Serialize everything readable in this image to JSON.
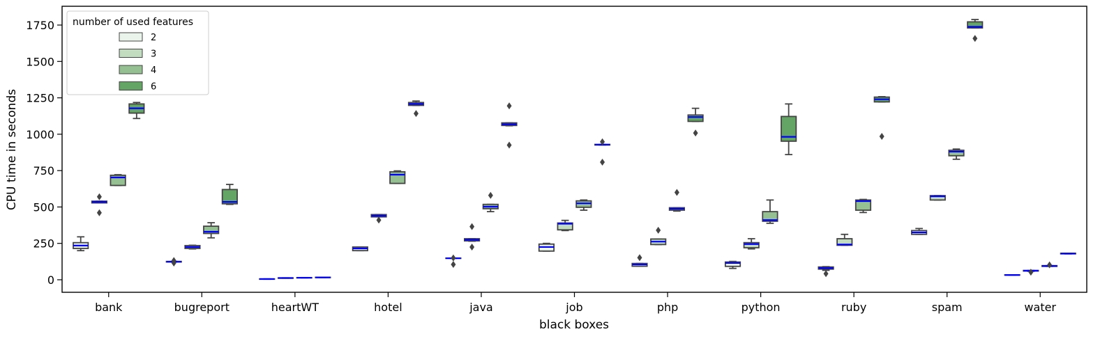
{
  "chart_data": {
    "type": "box",
    "title": "",
    "xlabel": "black boxes",
    "ylabel": "CPU time in seconds",
    "ylim": [
      -80,
      1880
    ],
    "yticks": [
      0,
      250,
      500,
      750,
      1000,
      1250,
      1500,
      1750
    ],
    "categories": [
      "bank",
      "bugreport",
      "heartWT",
      "hotel",
      "java",
      "job",
      "php",
      "python",
      "ruby",
      "spam",
      "water"
    ],
    "legend": {
      "title": "number of used features",
      "placement": "top-left",
      "entries": [
        "2",
        "3",
        "4",
        "6"
      ]
    },
    "colors": {
      "2": "#eaf4ea",
      "3": "#c1dcbf",
      "4": "#95c192",
      "6": "#64a464",
      "box_edge": "#444444",
      "median": "#0000ff",
      "outlier": "#444444"
    },
    "series": [
      {
        "name": "2",
        "boxes": [
          {
            "min": 200,
            "q1": 215,
            "median": 235,
            "q3": 255,
            "max": 295,
            "outliers": []
          },
          {
            "min": 122,
            "q1": 122,
            "median": 124,
            "q3": 126,
            "max": 126,
            "outliers": [
              115,
              132
            ]
          },
          {
            "min": 4,
            "q1": 4,
            "median": 5,
            "q3": 6,
            "max": 6,
            "outliers": []
          },
          {
            "min": 200,
            "q1": 200,
            "median": 215,
            "q3": 225,
            "max": 225,
            "outliers": []
          },
          {
            "min": 147,
            "q1": 147,
            "median": 148,
            "q3": 149,
            "max": 149,
            "outliers": [
              105,
              150
            ]
          },
          {
            "min": 197,
            "q1": 197,
            "median": 225,
            "q3": 245,
            "max": 250,
            "outliers": []
          },
          {
            "min": 93,
            "q1": 93,
            "median": 105,
            "q3": 112,
            "max": 112,
            "outliers": [
              152
            ]
          },
          {
            "min": 78,
            "q1": 92,
            "median": 115,
            "q3": 122,
            "max": 126,
            "outliers": []
          },
          {
            "min": 65,
            "q1": 73,
            "median": 80,
            "q3": 88,
            "max": 90,
            "outliers": [
              42
            ]
          },
          {
            "min": 312,
            "q1": 312,
            "median": 325,
            "q3": 338,
            "max": 352,
            "outliers": []
          },
          {
            "min": 32,
            "q1": 32,
            "median": 33,
            "q3": 34,
            "max": 34,
            "outliers": []
          }
        ]
      },
      {
        "name": "3",
        "boxes": [
          {
            "min": 528,
            "q1": 528,
            "median": 535,
            "q3": 540,
            "max": 540,
            "outliers": [
              460,
              570
            ]
          },
          {
            "min": 212,
            "q1": 215,
            "median": 225,
            "q3": 235,
            "max": 237,
            "outliers": []
          },
          {
            "min": 11,
            "q1": 11,
            "median": 12,
            "q3": 13,
            "max": 13,
            "outliers": []
          },
          {
            "min": 432,
            "q1": 432,
            "median": 440,
            "q3": 448,
            "max": 448,
            "outliers": [
              410
            ]
          },
          {
            "min": 265,
            "q1": 267,
            "median": 275,
            "q3": 282,
            "max": 282,
            "outliers": [
              225,
              365
            ]
          },
          {
            "min": 338,
            "q1": 343,
            "median": 385,
            "q3": 390,
            "max": 408,
            "outliers": []
          },
          {
            "min": 242,
            "q1": 242,
            "median": 262,
            "q3": 280,
            "max": 280,
            "outliers": [
              340
            ]
          },
          {
            "min": 212,
            "q1": 220,
            "median": 245,
            "q3": 255,
            "max": 282,
            "outliers": []
          },
          {
            "min": 237,
            "q1": 237,
            "median": 242,
            "q3": 282,
            "max": 312,
            "outliers": []
          },
          {
            "min": 548,
            "q1": 548,
            "median": 573,
            "q3": 578,
            "max": 578,
            "outliers": []
          },
          {
            "min": 58,
            "q1": 60,
            "median": 62,
            "q3": 64,
            "max": 64,
            "outliers": [
              52
            ]
          }
        ]
      },
      {
        "name": "4",
        "boxes": [
          {
            "min": 648,
            "q1": 648,
            "median": 703,
            "q3": 718,
            "max": 722,
            "outliers": []
          },
          {
            "min": 288,
            "q1": 318,
            "median": 330,
            "q3": 368,
            "max": 392,
            "outliers": []
          },
          {
            "min": 13,
            "q1": 13,
            "median": 14,
            "q3": 15,
            "max": 15,
            "outliers": []
          },
          {
            "min": 662,
            "q1": 662,
            "median": 722,
            "q3": 742,
            "max": 748,
            "outliers": []
          },
          {
            "min": 468,
            "q1": 488,
            "median": 502,
            "q3": 518,
            "max": 518,
            "outliers": [
              580
            ]
          },
          {
            "min": 478,
            "q1": 498,
            "median": 525,
            "q3": 542,
            "max": 548,
            "outliers": []
          },
          {
            "min": 472,
            "q1": 478,
            "median": 488,
            "q3": 495,
            "max": 495,
            "outliers": [
              600
            ]
          },
          {
            "min": 388,
            "q1": 402,
            "median": 410,
            "q3": 468,
            "max": 548,
            "outliers": []
          },
          {
            "min": 462,
            "q1": 478,
            "median": 540,
            "q3": 548,
            "max": 552,
            "outliers": []
          },
          {
            "min": 828,
            "q1": 852,
            "median": 880,
            "q3": 890,
            "max": 898,
            "outliers": []
          },
          {
            "min": 92,
            "q1": 92,
            "median": 95,
            "q3": 97,
            "max": 97,
            "outliers": [
              102
            ]
          }
        ]
      },
      {
        "name": "6",
        "boxes": [
          {
            "min": 1108,
            "q1": 1145,
            "median": 1178,
            "q3": 1208,
            "max": 1218,
            "outliers": []
          },
          {
            "min": 518,
            "q1": 522,
            "median": 535,
            "q3": 620,
            "max": 655,
            "outliers": []
          },
          {
            "min": 15,
            "q1": 15,
            "median": 16,
            "q3": 17,
            "max": 17,
            "outliers": []
          },
          {
            "min": 1198,
            "q1": 1198,
            "median": 1208,
            "q3": 1218,
            "max": 1228,
            "outliers": [
              1142
            ]
          },
          {
            "min": 1058,
            "q1": 1060,
            "median": 1068,
            "q3": 1078,
            "max": 1078,
            "outliers": [
              925,
              1195
            ]
          },
          {
            "min": 926,
            "q1": 926,
            "median": 928,
            "q3": 930,
            "max": 930,
            "outliers": [
              808,
              948
            ]
          },
          {
            "min": 1088,
            "q1": 1088,
            "median": 1118,
            "q3": 1132,
            "max": 1178,
            "outliers": [
              1008
            ]
          },
          {
            "min": 860,
            "q1": 952,
            "median": 982,
            "q3": 1122,
            "max": 1208,
            "outliers": []
          },
          {
            "min": 1222,
            "q1": 1222,
            "median": 1240,
            "q3": 1255,
            "max": 1258,
            "outliers": [
              985
            ]
          },
          {
            "min": 1730,
            "q1": 1730,
            "median": 1738,
            "q3": 1772,
            "max": 1788,
            "outliers": [
              1658
            ]
          },
          {
            "min": 178,
            "q1": 178,
            "median": 180,
            "q3": 182,
            "max": 182,
            "outliers": []
          }
        ]
      }
    ]
  }
}
